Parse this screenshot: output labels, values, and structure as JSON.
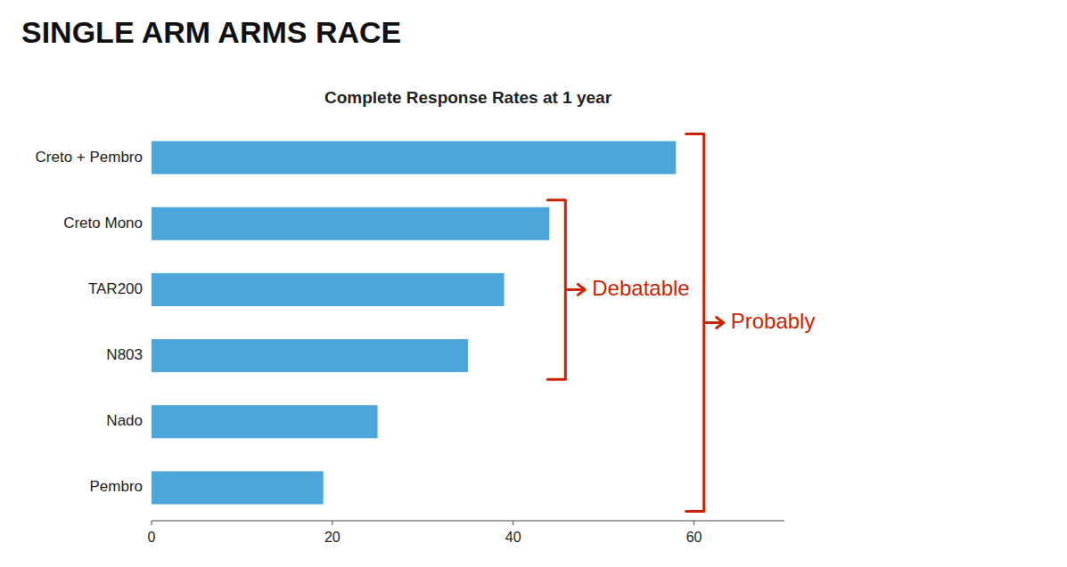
{
  "chart_data": {
    "type": "bar",
    "orientation": "horizontal",
    "title": "SINGLE ARM ARMS RACE",
    "subtitle": "Complete Response Rates at 1 year",
    "categories": [
      "Pembro",
      "Nado",
      "N803",
      "TAR200",
      "Creto Mono",
      "Creto + Pembro"
    ],
    "values": [
      19,
      25,
      35,
      39,
      44,
      58
    ],
    "color": "#4da6d9",
    "xlim": [
      0,
      70
    ],
    "xticks": [
      0,
      20,
      40,
      60
    ],
    "annotations": [
      {
        "text": "Debatable",
        "color": "#cc2200",
        "categories": [
          "N803",
          "TAR200",
          "Creto Mono"
        ]
      },
      {
        "text": "Probably",
        "color": "#cc2200",
        "categories": [
          "Pembro",
          "Nado",
          "N803",
          "TAR200",
          "Creto Mono",
          "Creto + Pembro"
        ]
      }
    ]
  }
}
